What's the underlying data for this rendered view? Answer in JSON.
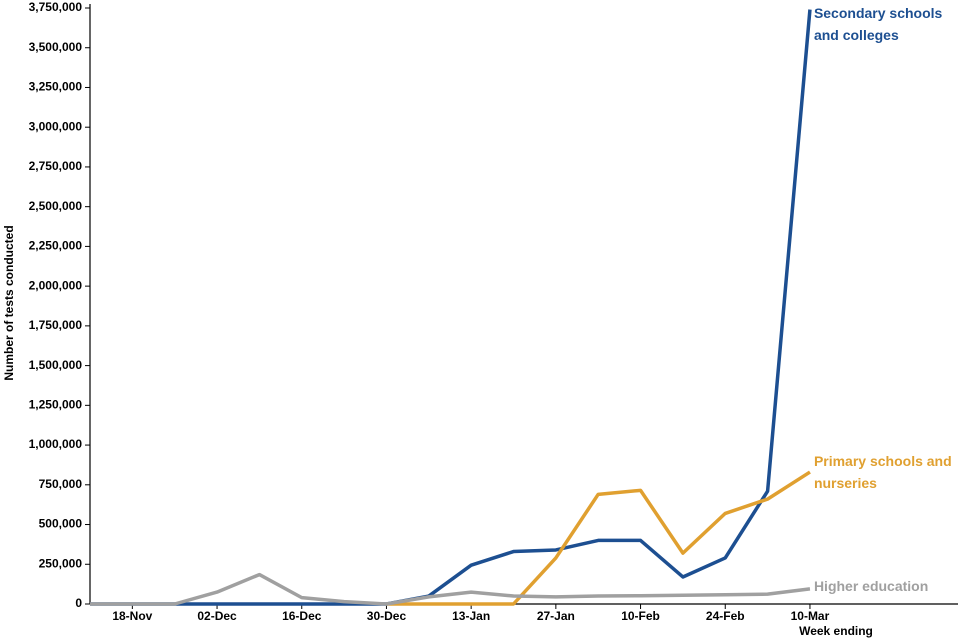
{
  "chart_data": {
    "type": "line",
    "x_label": "Week ending",
    "y_label": "Number of tests conducted",
    "categories": [
      null,
      "18-Nov",
      null,
      "02-Dec",
      null,
      "16-Dec",
      null,
      "30-Dec",
      null,
      "13-Jan",
      null,
      "27-Jan",
      null,
      "10-Feb",
      null,
      "24-Feb",
      null,
      "10-Mar"
    ],
    "series": [
      {
        "name": "Secondary schools and colleges",
        "color": "#1d4f91",
        "values": [
          0,
          0,
          0,
          0,
          0,
          0,
          0,
          0,
          50000,
          244000,
          330000,
          340000,
          400000,
          400000,
          170000,
          290000,
          710000,
          3740000
        ]
      },
      {
        "name": "Primary schools and nurseries",
        "color": "#e0a030",
        "values": [
          null,
          null,
          null,
          null,
          null,
          null,
          null,
          0,
          0,
          0,
          0,
          290000,
          690000,
          715000,
          320000,
          570000,
          660000,
          830000
        ]
      },
      {
        "name": "Higher education",
        "color": "#a0a0a0",
        "values": [
          0,
          0,
          0,
          75000,
          185000,
          40000,
          15000,
          0,
          45000,
          75000,
          50000,
          45000,
          50000,
          52000,
          55000,
          58000,
          62000,
          95000
        ]
      }
    ],
    "ylim": [
      0,
      3750000
    ],
    "yticks": [
      {
        "value": 0,
        "label": "0"
      },
      {
        "value": 250000,
        "label": "250,000"
      },
      {
        "value": 500000,
        "label": "500,000"
      },
      {
        "value": 750000,
        "label": "750,000"
      },
      {
        "value": 1000000,
        "label": "1,000,000"
      },
      {
        "value": 1250000,
        "label": "1,250,000"
      },
      {
        "value": 1500000,
        "label": "1,500,000"
      },
      {
        "value": 1750000,
        "label": "1,750,000"
      },
      {
        "value": 2000000,
        "label": "2,000,000"
      },
      {
        "value": 2250000,
        "label": "2,250,000"
      },
      {
        "value": 2500000,
        "label": "2,500,000"
      },
      {
        "value": 2750000,
        "label": "2,750,000"
      },
      {
        "value": 3000000,
        "label": "3,000,000"
      },
      {
        "value": 3250000,
        "label": "3,250,000"
      },
      {
        "value": 3500000,
        "label": "3,500,000"
      },
      {
        "value": 3750000,
        "label": "3,750,000"
      }
    ],
    "grid": false
  }
}
